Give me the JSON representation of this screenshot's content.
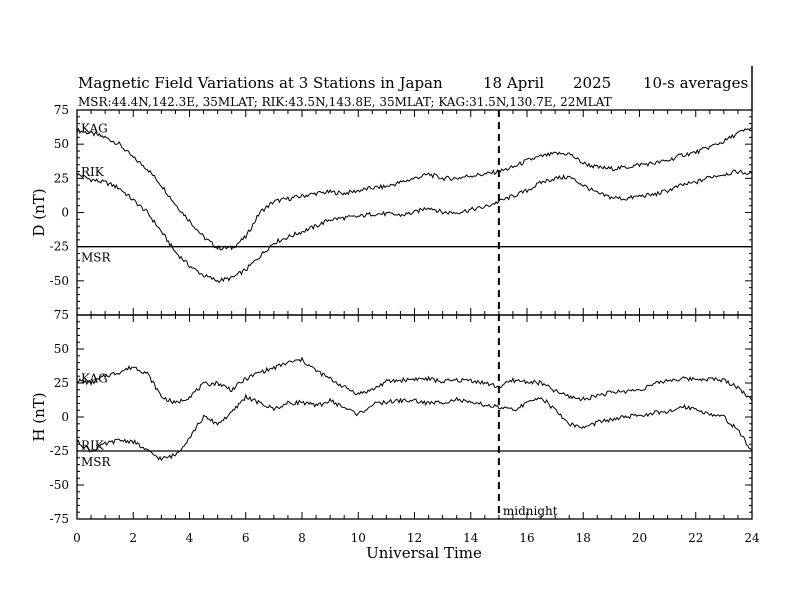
{
  "title": {
    "main": "Magnetic Field Variations at 3 Stations in Japan",
    "date": "18  April",
    "year": "2025",
    "averaging": "10-s averages"
  },
  "subtitle": "MSR:44.4N,142.3E, 35MLAT;  RIK:43.5N,143.8E, 35MLAT;  KAG:31.5N,130.7E, 22MLAT",
  "x_axis": {
    "label": "Universal Time",
    "range": [
      0,
      24
    ],
    "ticks": [
      0,
      2,
      4,
      6,
      8,
      10,
      12,
      14,
      16,
      18,
      20,
      22,
      24
    ]
  },
  "annotation": {
    "text": "midnight",
    "x": 15
  },
  "chart_data": [
    {
      "type": "line",
      "ylabel": "D (nT)",
      "ylim": [
        -75,
        75
      ],
      "yticks": [
        75,
        50,
        25,
        0,
        -25,
        -50,
        -75
      ],
      "baseline": -25,
      "series": [
        {
          "name": "KAG",
          "x": [
            0,
            0.5,
            1,
            1.5,
            2,
            2.5,
            3,
            3.5,
            4,
            4.5,
            5,
            5.5,
            6,
            6.5,
            7,
            7.5,
            8,
            8.5,
            9,
            9.5,
            10,
            10.5,
            11,
            11.5,
            12,
            12.5,
            13,
            13.5,
            14,
            14.5,
            15,
            15.5,
            16,
            16.5,
            17,
            17.5,
            18,
            18.5,
            19,
            19.5,
            20,
            20.5,
            21,
            21.5,
            22,
            22.5,
            23,
            23.5,
            24
          ],
          "y": [
            60,
            58,
            55,
            50,
            40,
            32,
            20,
            6,
            -6,
            -18,
            -26,
            -26,
            -18,
            0,
            8,
            10,
            12,
            14,
            15,
            14,
            16,
            18,
            19,
            22,
            25,
            28,
            25,
            25,
            27,
            28,
            30,
            33,
            38,
            41,
            43,
            43,
            36,
            33,
            32,
            33,
            35,
            36,
            38,
            42,
            44,
            48,
            52,
            58,
            62
          ]
        },
        {
          "name": "RIK",
          "x": [
            0,
            0.5,
            1,
            1.5,
            2,
            2.5,
            3,
            3.5,
            4,
            4.5,
            5,
            5.5,
            6,
            6.5,
            7,
            7.5,
            8,
            8.5,
            9,
            9.5,
            10,
            10.5,
            11,
            11.5,
            12,
            12.5,
            13,
            13.5,
            14,
            14.5,
            15,
            15.5,
            16,
            16.5,
            17,
            17.5,
            18,
            18.5,
            19,
            19.5,
            20,
            20.5,
            21,
            21.5,
            22,
            22.5,
            23,
            23.5,
            24
          ],
          "y": [
            28,
            24,
            22,
            18,
            9,
            0,
            -14,
            -29,
            -39,
            -46,
            -50,
            -48,
            -42,
            -32,
            -22,
            -18,
            -14,
            -10,
            -5,
            -4,
            -3,
            -1,
            -1,
            -2,
            0,
            4,
            0,
            0,
            2,
            4,
            8,
            12,
            16,
            22,
            25,
            26,
            20,
            14,
            11,
            10,
            12,
            13,
            16,
            20,
            22,
            26,
            28,
            30,
            28
          ]
        },
        {
          "name": "MSR",
          "x": [
            0,
            24
          ],
          "y": [
            -25,
            -25
          ]
        }
      ]
    },
    {
      "type": "line",
      "ylabel": "H (nT)",
      "ylim": [
        -75,
        75
      ],
      "yticks": [
        75,
        50,
        25,
        0,
        -25,
        -50,
        -75
      ],
      "baseline": -25,
      "series": [
        {
          "name": "KAG",
          "x": [
            0,
            0.5,
            1,
            1.5,
            2,
            2.5,
            3,
            3.5,
            4,
            4.5,
            5,
            5.5,
            6,
            6.5,
            7,
            7.5,
            8,
            8.5,
            9,
            9.5,
            10,
            10.5,
            11,
            11.5,
            12,
            12.5,
            13,
            13.5,
            14,
            14.5,
            15,
            15.5,
            16,
            16.5,
            17,
            17.5,
            18,
            18.5,
            19,
            19.5,
            20,
            20.5,
            21,
            21.5,
            22,
            22.5,
            23,
            23.5,
            24
          ],
          "y": [
            27,
            25,
            30,
            33,
            37,
            32,
            15,
            10,
            15,
            24,
            25,
            20,
            28,
            33,
            36,
            40,
            42,
            34,
            28,
            22,
            17,
            20,
            26,
            27,
            28,
            28,
            26,
            27,
            27,
            25,
            22,
            27,
            26,
            25,
            19,
            15,
            13,
            16,
            18,
            19,
            20,
            24,
            27,
            28,
            28,
            28,
            27,
            22,
            12
          ]
        },
        {
          "name": "RIK",
          "x": [
            0,
            0.5,
            1,
            1.5,
            2,
            2.5,
            3,
            3.5,
            4,
            4.5,
            5,
            5.5,
            6,
            6.5,
            7,
            7.5,
            8,
            8.5,
            9,
            9.5,
            10,
            10.5,
            11,
            11.5,
            12,
            12.5,
            13,
            13.5,
            14,
            14.5,
            15,
            15.5,
            16,
            16.5,
            17,
            17.5,
            18,
            18.5,
            19,
            19.5,
            20,
            20.5,
            21,
            21.5,
            22,
            22.5,
            23,
            23.5,
            24
          ],
          "y": [
            -18,
            -25,
            -20,
            -17,
            -18,
            -25,
            -31,
            -28,
            -15,
            0,
            -5,
            3,
            15,
            10,
            6,
            10,
            11,
            8,
            12,
            7,
            2,
            9,
            11,
            12,
            12,
            10,
            11,
            13,
            10,
            9,
            7,
            5,
            10,
            15,
            5,
            -5,
            -8,
            -4,
            -2,
            0,
            1,
            3,
            3,
            8,
            6,
            2,
            0,
            -10,
            -25
          ]
        },
        {
          "name": "MSR",
          "x": [
            0,
            24
          ],
          "y": [
            -25,
            -25
          ]
        }
      ]
    }
  ]
}
